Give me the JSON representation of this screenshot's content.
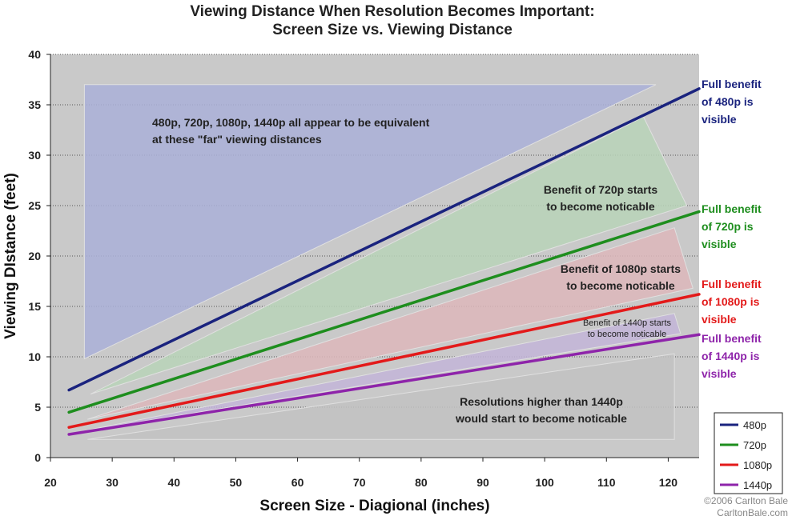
{
  "chart_data": {
    "type": "line",
    "title_line1": "Viewing Distance When Resolution Becomes Important:",
    "title_line2": "Screen Size vs. Viewing Distance",
    "xlabel": "Screen Size - Diagional (inches)",
    "ylabel": "Viewing DIstance (feet)",
    "xlim": [
      20,
      125
    ],
    "ylim": [
      0,
      40
    ],
    "x_ticks": [
      20,
      30,
      40,
      50,
      60,
      70,
      80,
      90,
      100,
      110,
      120
    ],
    "y_ticks": [
      0,
      5,
      10,
      15,
      20,
      25,
      30,
      35,
      40
    ],
    "grid": "horizontal dotted",
    "legend_position": "bottom-right",
    "series": [
      {
        "name": "480p",
        "color": "#1a237e",
        "x": [
          23,
          125
        ],
        "y": [
          6.7,
          36.6
        ],
        "end_label": [
          "Full benefit",
          "of 480p is",
          "visible"
        ]
      },
      {
        "name": "720p",
        "color": "#1e8e1e",
        "x": [
          23,
          125
        ],
        "y": [
          4.5,
          24.4
        ],
        "end_label": [
          "Full benefit",
          "of 720p is",
          "visible"
        ]
      },
      {
        "name": "1080p",
        "color": "#e31a1a",
        "x": [
          23,
          125
        ],
        "y": [
          3.0,
          16.2
        ],
        "end_label": [
          "Full benefit",
          "of 1080p is",
          "visible"
        ]
      },
      {
        "name": "1440p",
        "color": "#8e24aa",
        "x": [
          23,
          125
        ],
        "y": [
          2.3,
          12.2
        ],
        "end_label": [
          "Full benefit",
          "of 1440p is",
          "visible"
        ]
      }
    ],
    "regions": [
      {
        "name": "480p-720p-1080p-1440p-equivalent",
        "fill": "#aab0d8",
        "points": [
          [
            25.5,
            37
          ],
          [
            118,
            37
          ],
          [
            25.5,
            9.8
          ]
        ],
        "text": [
          "480p, 720p, 1080p, 1440p all appear to be equivalent",
          "at these \"far\" viewing distances"
        ]
      },
      {
        "name": "benefit-720p",
        "fill": "#b8d4b8",
        "points": [
          [
            26.5,
            6.3
          ],
          [
            116,
            33.8
          ],
          [
            123,
            25
          ]
        ],
        "text": [
          "Benefit of 720p starts",
          "to become noticable"
        ]
      },
      {
        "name": "benefit-1080p",
        "fill": "#ddb7bb",
        "points": [
          [
            26,
            3.8
          ],
          [
            121,
            22.8
          ],
          [
            124,
            16.8
          ]
        ],
        "text": [
          "Benefit of 1080p starts",
          "to become noticable"
        ]
      },
      {
        "name": "benefit-1440p",
        "fill": "#c3b5d8",
        "points": [
          [
            25,
            2.6
          ],
          [
            121,
            14.3
          ],
          [
            122,
            12.3
          ]
        ],
        "text": [
          "Benefit of 1440p starts",
          "to become noticable"
        ]
      },
      {
        "name": "higher-than-1440p",
        "fill": "#c2c2c2",
        "points": [
          [
            26,
            1.8
          ],
          [
            121,
            1.8
          ],
          [
            121,
            10.3
          ]
        ],
        "text": [
          "Resolutions higher than 1440p",
          "would start to become noticable"
        ]
      }
    ]
  },
  "credit": {
    "line1": "©2006 Carlton Bale",
    "line2": "CarltonBale.com"
  }
}
